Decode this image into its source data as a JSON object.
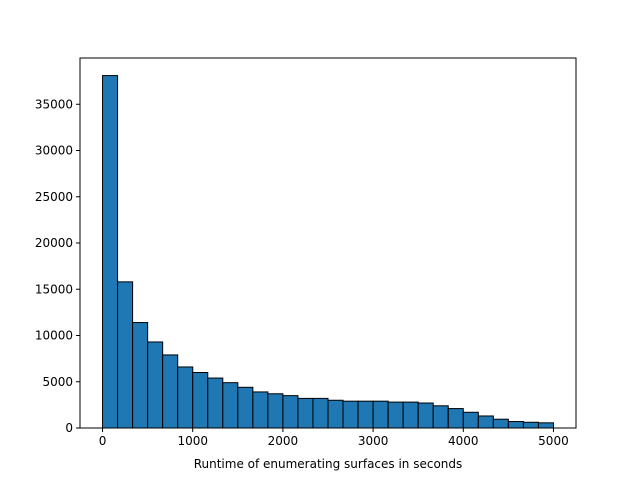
{
  "chart_data": {
    "type": "histogram",
    "xlabel": "Runtime of enumerating surfaces in seconds",
    "ylabel": "",
    "title": "",
    "xlim": [
      -250,
      5250
    ],
    "ylim": [
      0,
      40000
    ],
    "bin_width": 166.67,
    "bins_start": 0,
    "values": [
      38100,
      15800,
      11400,
      9300,
      7900,
      6600,
      6000,
      5400,
      4900,
      4400,
      3900,
      3700,
      3500,
      3200,
      3200,
      3000,
      2900,
      2900,
      2900,
      2800,
      2800,
      2700,
      2400,
      2100,
      1700,
      1300,
      950,
      700,
      620,
      560
    ],
    "xticks": [
      0,
      1000,
      2000,
      3000,
      4000,
      5000
    ],
    "xtick_labels": [
      "0",
      "1000",
      "2000",
      "3000",
      "4000",
      "5000"
    ],
    "yticks": [
      0,
      5000,
      10000,
      15000,
      20000,
      25000,
      30000,
      35000
    ],
    "ytick_labels": [
      "0",
      "5000",
      "10000",
      "15000",
      "20000",
      "25000",
      "30000",
      "35000"
    ],
    "grid": false,
    "colors": {
      "bar": "#1f77b4",
      "edge": "#000000"
    }
  }
}
